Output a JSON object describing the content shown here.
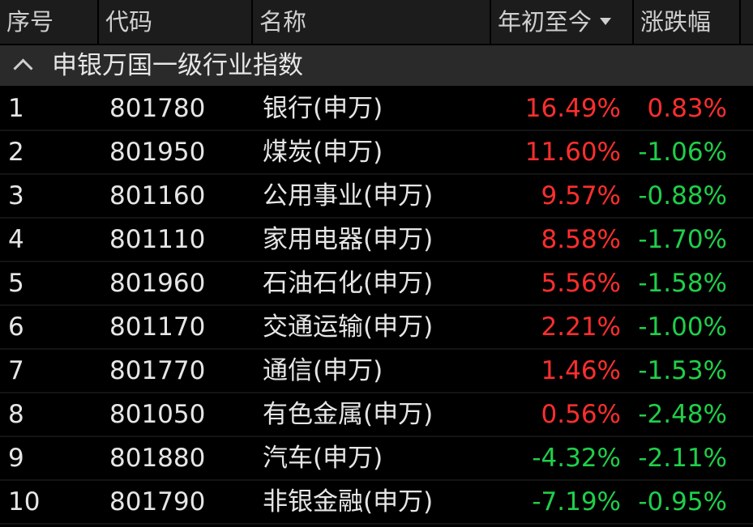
{
  "header": {
    "seq": "序号",
    "code": "代码",
    "name": "名称",
    "ytd": "年初至今",
    "change": "涨跌幅"
  },
  "group": {
    "title": "申银万国一级行业指数"
  },
  "colors": {
    "up": "#ff2e2e",
    "down": "#1fcf4a",
    "header_bg": "#1c1c1c",
    "group_bg": "#2a2a2a",
    "background": "#000000"
  },
  "rows": [
    {
      "seq": "1",
      "code": "801780",
      "name": "银行(申万)",
      "ytd": "16.49%",
      "change": "0.83%"
    },
    {
      "seq": "2",
      "code": "801950",
      "name": "煤炭(申万)",
      "ytd": "11.60%",
      "change": "-1.06%"
    },
    {
      "seq": "3",
      "code": "801160",
      "name": "公用事业(申万)",
      "ytd": "9.57%",
      "change": "-0.88%"
    },
    {
      "seq": "4",
      "code": "801110",
      "name": "家用电器(申万)",
      "ytd": "8.58%",
      "change": "-1.70%"
    },
    {
      "seq": "5",
      "code": "801960",
      "name": "石油石化(申万)",
      "ytd": "5.56%",
      "change": "-1.58%"
    },
    {
      "seq": "6",
      "code": "801170",
      "name": "交通运输(申万)",
      "ytd": "2.21%",
      "change": "-1.00%"
    },
    {
      "seq": "7",
      "code": "801770",
      "name": "通信(申万)",
      "ytd": "1.46%",
      "change": "-1.53%"
    },
    {
      "seq": "8",
      "code": "801050",
      "name": "有色金属(申万)",
      "ytd": "0.56%",
      "change": "-2.48%"
    },
    {
      "seq": "9",
      "code": "801880",
      "name": "汽车(申万)",
      "ytd": "-4.32%",
      "change": "-2.11%"
    },
    {
      "seq": "10",
      "code": "801790",
      "name": "非银金融(申万)",
      "ytd": "-7.19%",
      "change": "-0.95%"
    }
  ]
}
